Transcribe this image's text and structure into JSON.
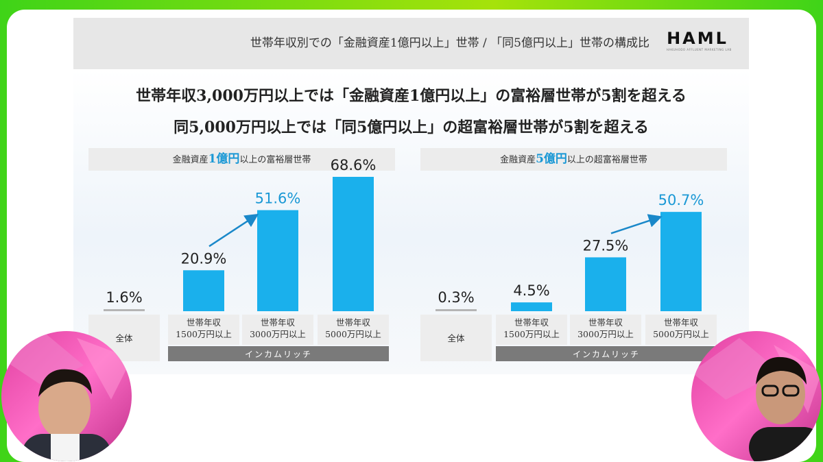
{
  "header": {
    "title": "世帯年収別での「金融資産1億円以上」世帯 / 「同5億円以上」世帯の構成比",
    "logo": "HAML",
    "logo_sub": "HAKUHODO AFFLUENT MARKETING LAB"
  },
  "headline": {
    "line1": "世帯年収3,000万円以上では「金融資産1億円以上」の富裕層世帯が5割を超える",
    "line2": "同5,000万円以上では「同5億円以上」の超富裕層世帯が5割を超える"
  },
  "colors": {
    "bar": "#1ab0ec",
    "baseline_bar": "#b5b5b5",
    "highlight_text": "#1a98d5",
    "group_band": "#7a7a7a",
    "arrow": "#1a88c9"
  },
  "chart_data": [
    {
      "type": "bar",
      "title_prefix": "金融資産",
      "title_highlight": "1億円",
      "title_suffix": "以上の富裕層世帯",
      "categories": [
        "全体",
        "世帯年収\n1500万円以上",
        "世帯年収\n3000万円以上",
        "世帯年収\n5000万円以上"
      ],
      "values": [
        1.6,
        20.9,
        51.6,
        68.6
      ],
      "labels": [
        "1.6%",
        "20.9%",
        "51.6%",
        "68.6%"
      ],
      "highlight_index": 2,
      "group_label": "インカムリッチ",
      "ylim": [
        0,
        70
      ]
    },
    {
      "type": "bar",
      "title_prefix": "金融資産",
      "title_highlight": "5億円",
      "title_suffix": "以上の超富裕層世帯",
      "categories": [
        "全体",
        "世帯年収\n1500万円以上",
        "世帯年収\n3000万円以上",
        "世帯年収\n5000万円以上"
      ],
      "values": [
        0.3,
        4.5,
        27.5,
        50.7
      ],
      "labels": [
        "0.3%",
        "4.5%",
        "27.5%",
        "50.7%"
      ],
      "highlight_index": 3,
      "group_label": "インカムリッチ",
      "ylim": [
        0,
        70
      ]
    }
  ],
  "people": {
    "left": "person-left",
    "right": "person-right"
  }
}
